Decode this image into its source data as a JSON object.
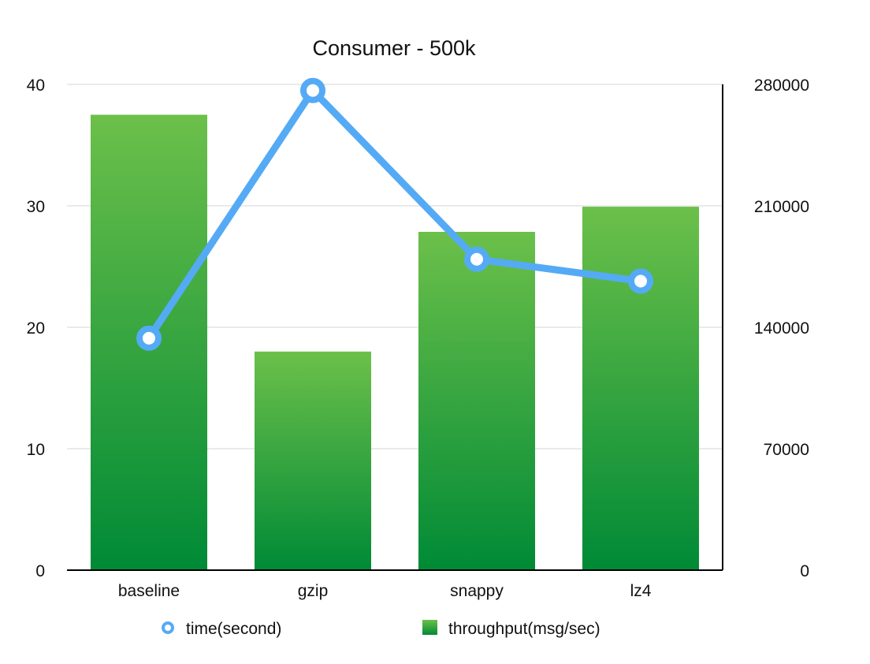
{
  "chart_data": {
    "type": "bar",
    "title": "Consumer - 500k",
    "categories": [
      "baseline",
      "gzip",
      "snappy",
      "lz4"
    ],
    "series": [
      {
        "name": "throughput(msg/sec)",
        "type": "bar",
        "axis": "right",
        "values": [
          262500,
          126000,
          195000,
          209500
        ],
        "color": "#2aa83a"
      },
      {
        "name": "time(second)",
        "type": "line",
        "axis": "left",
        "values": [
          19.1,
          39.5,
          25.6,
          23.8
        ],
        "color": "#55aaf5"
      }
    ],
    "y_left": {
      "ylim": [
        0,
        40
      ],
      "ticks": [
        "0",
        "10",
        "20",
        "30",
        "40"
      ]
    },
    "y_right": {
      "ylim": [
        0,
        280000
      ],
      "ticks": [
        "0",
        "70000",
        "140000",
        "210000",
        "280000"
      ]
    },
    "grid": true,
    "legend": "bottom"
  }
}
